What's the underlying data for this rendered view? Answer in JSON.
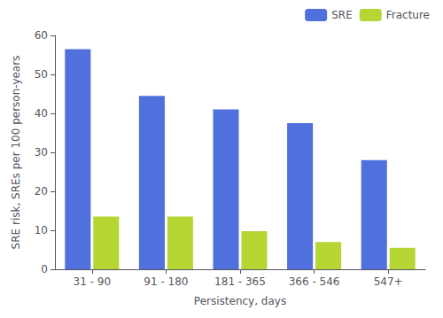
{
  "chart_data": {
    "type": "bar",
    "xlabel": "Persistency, days",
    "ylabel": "SRE risk, SREs per 100 person-years",
    "categories": [
      "31 - 90",
      "91 - 180",
      "181 - 365",
      "366 - 546",
      "547+"
    ],
    "series": [
      {
        "name": "SRE",
        "values": [
          56.5,
          44.5,
          41.0,
          37.5,
          28.0
        ]
      },
      {
        "name": "Fracture",
        "values": [
          13.5,
          13.5,
          9.8,
          7.0,
          5.5
        ]
      }
    ],
    "ylim": [
      0,
      60
    ],
    "yticks": [
      0,
      10,
      20,
      30,
      40,
      50,
      60
    ],
    "grid": false,
    "legend": "upper right"
  }
}
